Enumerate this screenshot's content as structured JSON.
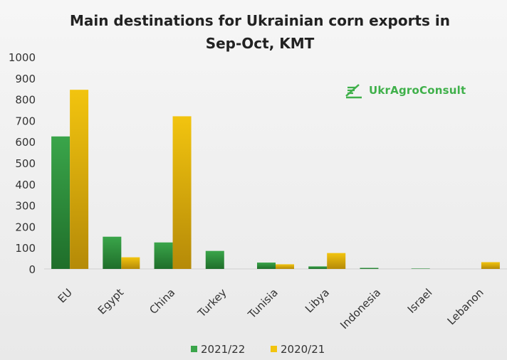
{
  "chart_data": {
    "type": "bar",
    "title_line1": "Main destinations for Ukrainian corn exports in",
    "title_line2": "Sep-Oct, KMT",
    "categories": [
      "EU",
      "Egypt",
      "China",
      "Turkey",
      "Tunisia",
      "Libya",
      "Indonesia",
      "Israel",
      "Lebanon"
    ],
    "series": [
      {
        "name": "2021/22",
        "color": "#3aa54a",
        "values": [
          625,
          152,
          125,
          85,
          30,
          12,
          5,
          2,
          0
        ]
      },
      {
        "name": "2020/21",
        "color": "#f2c40f",
        "values": [
          845,
          55,
          720,
          0,
          22,
          75,
          0,
          0,
          32
        ]
      }
    ],
    "ylim": [
      0,
      1000
    ],
    "yticks": [
      0,
      100,
      200,
      300,
      400,
      500,
      600,
      700,
      800,
      900,
      1000
    ],
    "grid": false,
    "legend_position": "bottom"
  },
  "watermark": {
    "logo_icon": "wheat-lines-icon",
    "text": "UkrAgroConsult"
  }
}
